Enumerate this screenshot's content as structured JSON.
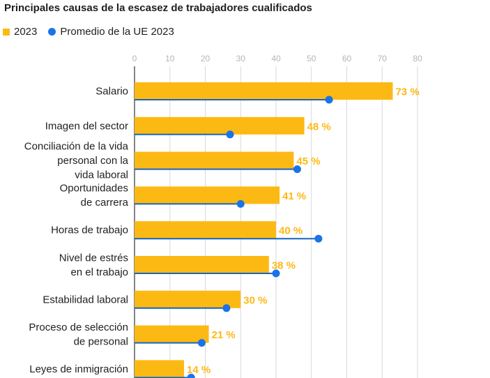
{
  "chart_data": {
    "type": "bar",
    "orientation": "horizontal",
    "title": "Principales causas de la escasez de trabajadores cualificados",
    "legend": [
      "2023",
      "Promedio de la UE 2023"
    ],
    "x_ticks": [
      "0",
      "10",
      "20",
      "30",
      "40",
      "50",
      "60",
      "70",
      "80"
    ],
    "xlim": [
      0,
      80
    ],
    "grid": true,
    "categories": [
      [
        "Salario"
      ],
      [
        "Imagen del sector"
      ],
      [
        "Conciliación de la vida",
        "personal con la",
        "vida laboral"
      ],
      [
        "Oportunidades",
        "de carrera"
      ],
      [
        "Horas de trabajo"
      ],
      [
        "Nivel de estrés",
        "en el trabajo"
      ],
      [
        "Estabilidad laboral"
      ],
      [
        "Proceso de selección",
        "de personal"
      ],
      [
        "Leyes de inmigración"
      ]
    ],
    "series": [
      {
        "name": "2023",
        "values": [
          73,
          48,
          45,
          41,
          40,
          38,
          30,
          21,
          14
        ]
      },
      {
        "name": "Promedio de la UE 2023",
        "values": [
          55,
          27,
          46,
          30,
          52,
          40,
          26,
          19,
          16
        ]
      }
    ],
    "value_labels": [
      "73 %",
      "48 %",
      "45 %",
      "41 %",
      "40 %",
      "38 %",
      "30 %",
      "21 %",
      "14 %"
    ]
  },
  "colors": {
    "bar": "#FDB913",
    "eu": "#1A73E8",
    "eu_line": "#1565C0",
    "grid": "#d9d9d9",
    "axis": "#333333"
  }
}
